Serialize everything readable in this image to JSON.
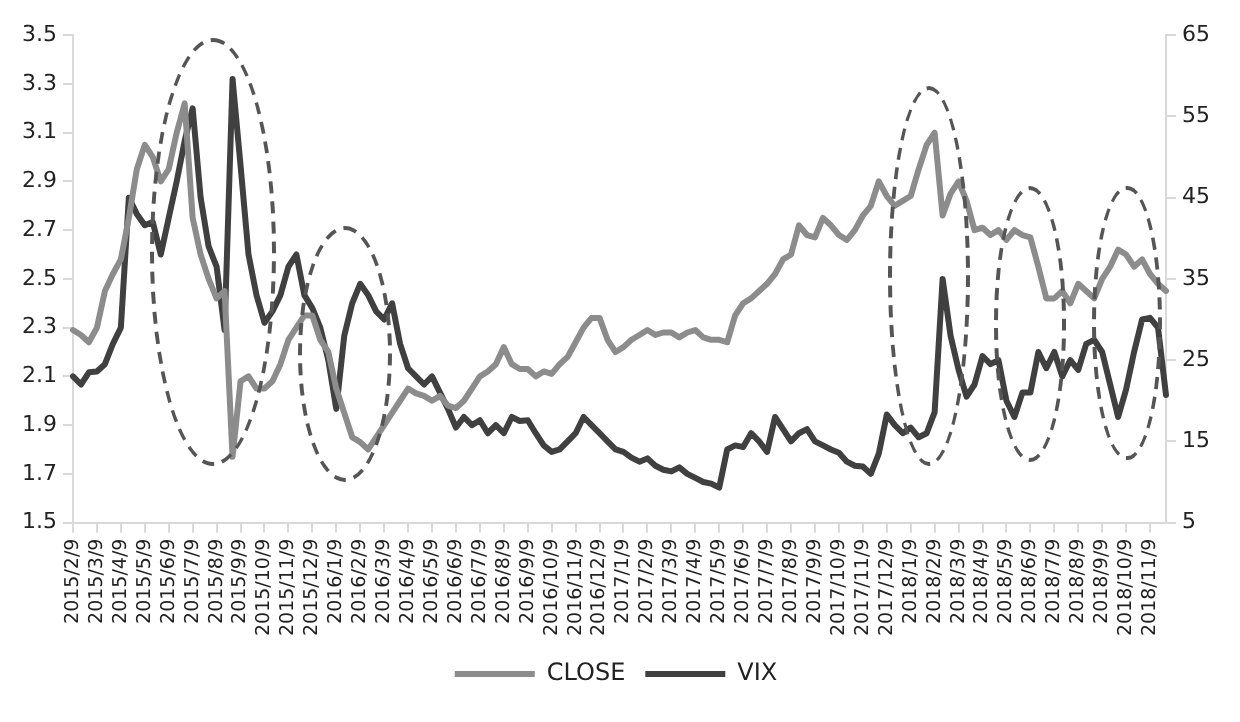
{
  "chart_data": {
    "type": "line",
    "categories": [
      "2015/2/9",
      null,
      null,
      "2015/3/9",
      null,
      null,
      "2015/4/9",
      null,
      null,
      "2015/5/9",
      null,
      null,
      "2015/6/9",
      null,
      null,
      "2015/7/9",
      null,
      null,
      "2015/8/9",
      null,
      null,
      "2015/9/9",
      null,
      null,
      "2015/10/9",
      null,
      null,
      "2015/11/9",
      null,
      null,
      "2015/12/9",
      null,
      null,
      "2016/1/9",
      null,
      null,
      "2016/2/9",
      null,
      null,
      "2016/3/9",
      null,
      null,
      "2016/4/9",
      null,
      null,
      "2016/5/9",
      null,
      null,
      "2016/6/9",
      null,
      null,
      "2016/7/9",
      null,
      null,
      "2016/8/9",
      null,
      null,
      "2016/9/9",
      null,
      null,
      "2016/10/9",
      null,
      null,
      "2016/11/9",
      null,
      null,
      "2016/12/9",
      null,
      null,
      "2017/1/9",
      null,
      null,
      "2017/2/9",
      null,
      null,
      "2017/3/9",
      null,
      null,
      "2017/4/9",
      null,
      null,
      "2017/5/9",
      null,
      null,
      "2017/6/9",
      null,
      null,
      "2017/7/9",
      null,
      null,
      "2017/8/9",
      null,
      null,
      "2017/9/9",
      null,
      null,
      "2017/10/9",
      null,
      null,
      "2017/11/9",
      null,
      null,
      "2017/12/9",
      null,
      null,
      "2018/1/9",
      null,
      null,
      "2018/2/9",
      null,
      null,
      "2018/3/9",
      null,
      null,
      "2018/4/9",
      null,
      null,
      "2018/5/9",
      null,
      null,
      "2018/6/9",
      null,
      null,
      "2018/7/9",
      null,
      null,
      "2018/8/9",
      null,
      null,
      "2018/9/9",
      null,
      null,
      "2018/10/9",
      null,
      null,
      "2018/11/9",
      null,
      null
    ],
    "series": [
      {
        "name": "CLOSE",
        "color": "#8c8c8c",
        "values": [
          2.29,
          2.27,
          2.24,
          2.3,
          2.45,
          2.52,
          2.58,
          2.75,
          2.95,
          3.05,
          3.0,
          2.9,
          2.95,
          3.1,
          3.22,
          2.75,
          2.6,
          2.5,
          2.42,
          2.45,
          1.77,
          2.08,
          2.1,
          2.05,
          2.05,
          2.08,
          2.15,
          2.25,
          2.3,
          2.35,
          2.35,
          2.25,
          2.2,
          2.05,
          1.95,
          1.85,
          1.83,
          1.8,
          1.85,
          1.9,
          1.95,
          2.0,
          2.05,
          2.03,
          2.02,
          2.0,
          2.02,
          1.98,
          1.97,
          2.0,
          2.05,
          2.1,
          2.12,
          2.15,
          2.22,
          2.15,
          2.13,
          2.13,
          2.1,
          2.12,
          2.11,
          2.15,
          2.18,
          2.24,
          2.3,
          2.34,
          2.34,
          2.25,
          2.2,
          2.22,
          2.25,
          2.27,
          2.29,
          2.27,
          2.28,
          2.28,
          2.26,
          2.28,
          2.29,
          2.26,
          2.25,
          2.25,
          2.24,
          2.35,
          2.4,
          2.42,
          2.45,
          2.48,
          2.52,
          2.58,
          2.6,
          2.72,
          2.68,
          2.67,
          2.75,
          2.72,
          2.68,
          2.66,
          2.7,
          2.76,
          2.8,
          2.9,
          2.84,
          2.8,
          2.82,
          2.84,
          2.95,
          3.05,
          3.1,
          2.76,
          2.85,
          2.9,
          2.82,
          2.7,
          2.71,
          2.68,
          2.7,
          2.66,
          2.7,
          2.68,
          2.67,
          2.55,
          2.42,
          2.42,
          2.45,
          2.4,
          2.48,
          2.45,
          2.42,
          2.5,
          2.55,
          2.62,
          2.6,
          2.55,
          2.58,
          2.52,
          2.48,
          2.45
        ]
      },
      {
        "name": "VIX",
        "color": "#404040",
        "axis": "y2",
        "values": [
          23,
          22,
          23.5,
          23.6,
          24.5,
          27,
          29,
          45,
          43,
          41.6,
          42,
          38,
          42.5,
          47,
          52,
          56,
          45,
          39,
          36.5,
          28.7,
          59.6,
          49,
          38,
          33,
          29.6,
          31,
          33,
          36.5,
          38,
          33,
          31.4,
          29,
          25,
          19,
          28,
          32,
          34.4,
          33,
          31,
          30,
          32,
          27,
          24,
          23,
          22,
          23,
          21,
          19,
          16.7,
          18,
          17,
          17.6,
          16,
          17,
          16,
          18,
          17.5,
          17.6,
          16,
          14.5,
          13.7,
          14,
          15,
          16,
          18,
          17,
          16,
          15,
          14,
          13.7,
          13,
          12.5,
          12.9,
          12,
          11.5,
          11.3,
          11.8,
          11,
          10.5,
          10,
          9.8,
          9.3,
          14,
          14.5,
          14.3,
          16,
          15,
          13.7,
          18,
          16.5,
          15,
          16,
          16.5,
          15,
          14.5,
          14,
          13.6,
          12.5,
          12,
          11.9,
          11,
          13.5,
          18.3,
          17,
          16,
          16.7,
          15.5,
          16,
          18.6,
          35,
          28,
          23.8,
          20.5,
          22,
          25.5,
          24.5,
          25,
          20,
          18,
          21,
          21,
          26,
          24,
          26,
          23,
          25,
          23.8,
          27,
          27.5,
          26,
          22,
          18,
          21.4,
          26,
          30,
          30.2,
          29,
          20.7
        ]
      }
    ],
    "ylim": [
      1.5,
      3.5
    ],
    "yticks": [
      1.5,
      1.7,
      1.9,
      2.1,
      2.3,
      2.5,
      2.7,
      2.9,
      3.1,
      3.3,
      3.5
    ],
    "y2lim": [
      5,
      65
    ],
    "y2ticks": [
      5,
      15,
      25,
      35,
      45,
      55,
      65
    ],
    "grid": false,
    "legend": "bottom",
    "marker": "none",
    "line_style": "solid"
  }
}
